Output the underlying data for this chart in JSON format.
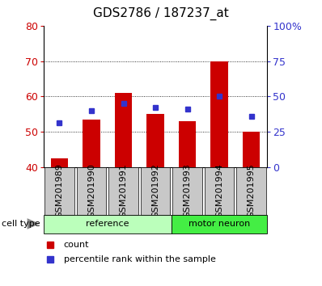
{
  "title": "GDS2786 / 187237_at",
  "categories": [
    "GSM201989",
    "GSM201990",
    "GSM201991",
    "GSM201992",
    "GSM201993",
    "GSM201994",
    "GSM201995"
  ],
  "counts": [
    42.5,
    53.5,
    61.0,
    55.0,
    53.0,
    70.0,
    50.0
  ],
  "percentile_ranks": [
    52.5,
    56.0,
    58.0,
    57.0,
    56.5,
    60.0,
    54.5
  ],
  "ylim_left": [
    40,
    80
  ],
  "ylim_right": [
    0,
    100
  ],
  "yticks_left": [
    40,
    50,
    60,
    70,
    80
  ],
  "yticks_right": [
    0,
    25,
    50,
    75,
    100
  ],
  "yticklabels_right": [
    "0",
    "25",
    "50",
    "75",
    "100%"
  ],
  "bar_color": "#cc0000",
  "point_color": "#3333cc",
  "bar_bottom": 40,
  "grid_ticks": [
    50,
    60,
    70
  ],
  "groups": [
    {
      "label": "reference",
      "start": 0,
      "end": 3,
      "color": "#bbffbb"
    },
    {
      "label": "motor neuron",
      "start": 4,
      "end": 6,
      "color": "#44ee44"
    }
  ],
  "cell_type_label": "cell type",
  "legend_count_label": "count",
  "legend_percentile_label": "percentile rank within the sample",
  "tick_bg_color": "#c8c8c8",
  "ylabel_left_color": "#cc0000",
  "ylabel_right_color": "#3333cc",
  "title_fontsize": 11,
  "tick_fontsize": 8,
  "axis_fontsize": 9
}
